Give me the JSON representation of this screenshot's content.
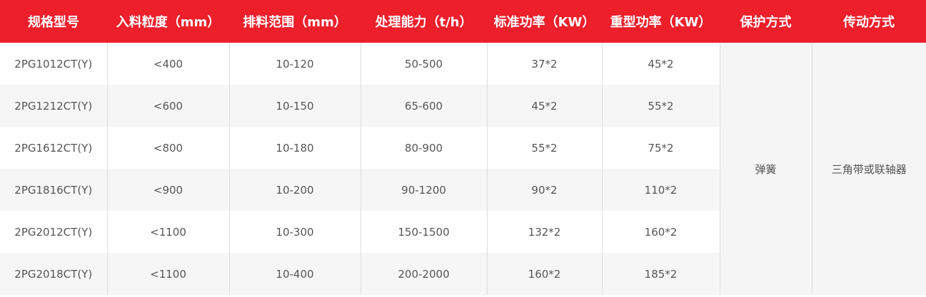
{
  "headers": [
    "规格型号",
    "入料粒度（mm）",
    "排料范围（mm）",
    "处理能力（t/h）",
    "标准功率（KW）",
    "重型功率（KW）",
    "保护方式",
    "传动方式"
  ],
  "rows": [
    [
      "2PG1012CT(Y)",
      "<400",
      "10-120",
      "50-500",
      "37*2",
      "45*2"
    ],
    [
      "2PG1212CT(Y)",
      "<600",
      "10-150",
      "65-600",
      "45*2",
      "55*2"
    ],
    [
      "2PG1612CT(Y)",
      "<800",
      "10-180",
      "80-900",
      "55*2",
      "75*2"
    ],
    [
      "2PG1816CT(Y)",
      "<900",
      "10-200",
      "90-1200",
      "90*2",
      "110*2"
    ],
    [
      "2PG2012CT(Y)",
      "<1100",
      "10-300",
      "150-1500",
      "132*2",
      "160*2"
    ],
    [
      "2PG2018CT(Y)",
      "<1100",
      "10-400",
      "200-2000",
      "160*2",
      "185*2"
    ]
  ],
  "protection": "弹簧",
  "transmission": "三角带或联轴器",
  "colors": {
    "header_bg": "#ec1f2b",
    "alt_row": "#f6f6f6"
  }
}
